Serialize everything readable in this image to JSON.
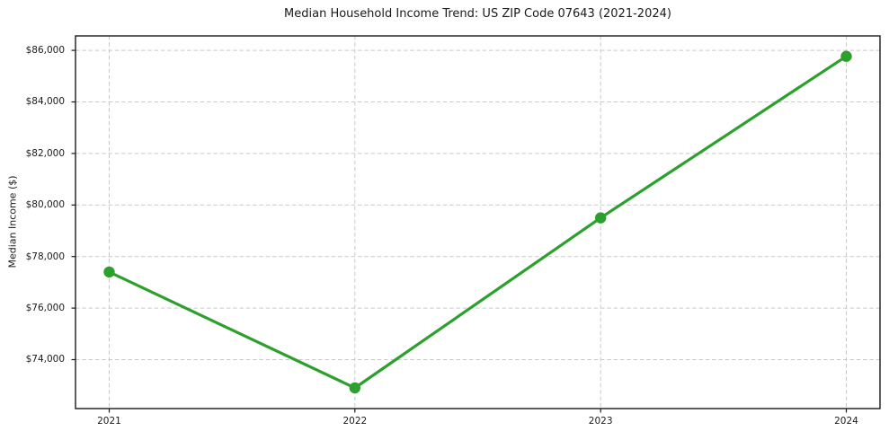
{
  "figure": {
    "background": "#ffffff"
  },
  "chart_data": {
    "type": "line",
    "title": "Median Household Income Trend: US ZIP Code 07643 (2021-2024)",
    "ylabel": "Median Income ($)",
    "xlabel": "",
    "categories": [
      "2021",
      "2022",
      "2023",
      "2024"
    ],
    "series": [
      {
        "name": "Median Household Income",
        "values": [
          77400,
          72900,
          79500,
          85770
        ],
        "color": "#2ca02c",
        "marker": "circle"
      }
    ],
    "yticks": [
      {
        "value": 74000,
        "label": "$74,000"
      },
      {
        "value": 76000,
        "label": "$76,000"
      },
      {
        "value": 78000,
        "label": "$78,000"
      },
      {
        "value": 80000,
        "label": "$80,000"
      },
      {
        "value": 82000,
        "label": "$82,000"
      },
      {
        "value": 84000,
        "label": "$84,000"
      },
      {
        "value": 86000,
        "label": "$86,000"
      }
    ],
    "ylim": [
      72100,
      86560
    ],
    "grid": true,
    "grid_style": "dashed",
    "grid_color": "#c9c9c9",
    "axis_color": "#1a1a1a",
    "text_color": "#1a1a1a",
    "legend_position": "none"
  }
}
